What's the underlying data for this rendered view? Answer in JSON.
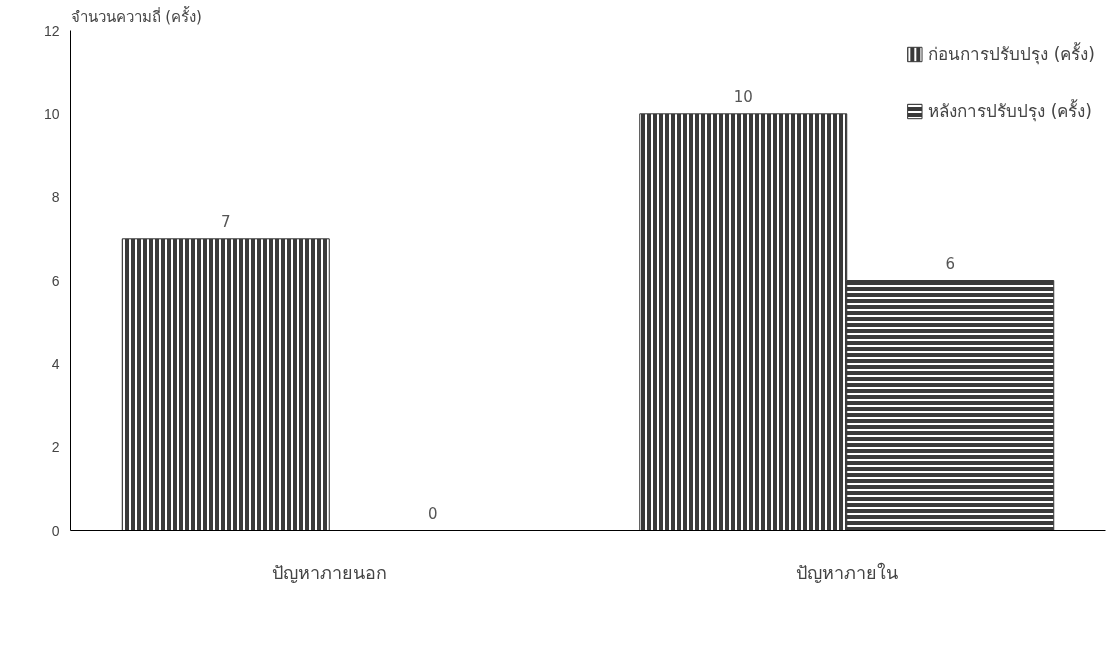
{
  "chart_data": {
    "type": "bar",
    "ylabel": "จำนวนความถี่ (ครั้ง)",
    "categories": [
      "ปัญหาภายนอก",
      "ปัญหาภายใน"
    ],
    "series": [
      {
        "name": "ก่อนการปรับปรุง (ครั้ง)",
        "color": "#3a3a3a",
        "values": [
          7,
          10
        ]
      },
      {
        "name": "หลังการปรับปรุง (ครั้ง)",
        "color": "#3a3a3a",
        "values": [
          0,
          6
        ]
      }
    ],
    "ylim": [
      0,
      12
    ],
    "yticks": [
      0,
      2,
      4,
      6,
      8,
      10,
      12
    ],
    "grid": false,
    "legend": "top right",
    "data_labels": true
  }
}
